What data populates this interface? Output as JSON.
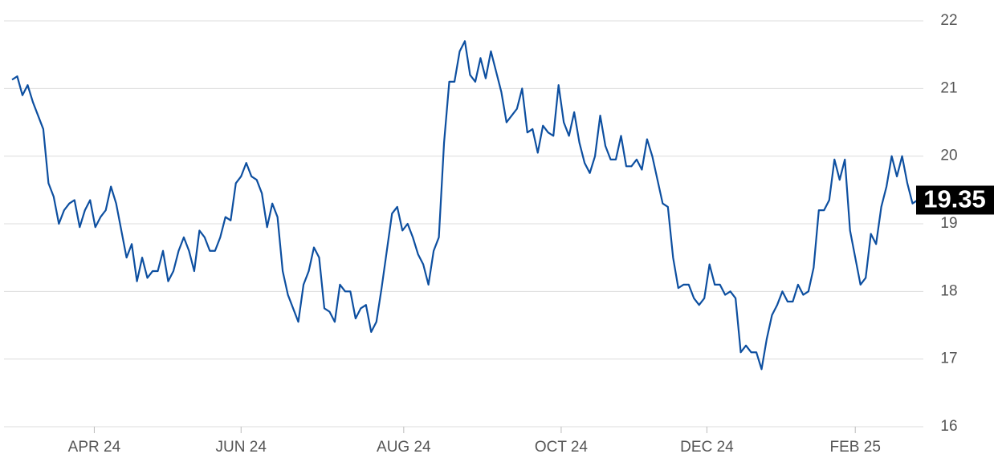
{
  "chart_data": {
    "type": "line",
    "color": "#0d4fa0",
    "grid": true,
    "values": [
      21.13,
      21.18,
      20.9,
      21.05,
      20.8,
      20.6,
      20.4,
      19.6,
      19.4,
      19.0,
      19.2,
      19.3,
      19.35,
      18.95,
      19.2,
      19.35,
      18.95,
      19.1,
      19.2,
      19.55,
      19.3,
      18.9,
      18.5,
      18.7,
      18.15,
      18.5,
      18.2,
      18.3,
      18.3,
      18.6,
      18.15,
      18.3,
      18.6,
      18.8,
      18.6,
      18.3,
      18.9,
      18.8,
      18.6,
      18.6,
      18.8,
      19.1,
      19.05,
      19.6,
      19.7,
      19.9,
      19.7,
      19.65,
      19.45,
      18.95,
      19.3,
      19.1,
      18.3,
      17.95,
      17.75,
      17.55,
      18.1,
      18.3,
      18.65,
      18.5,
      17.75,
      17.7,
      17.55,
      18.1,
      18.0,
      18.0,
      17.6,
      17.75,
      17.8,
      17.4,
      17.55,
      18.05,
      18.6,
      19.15,
      19.25,
      18.9,
      19.0,
      18.8,
      18.55,
      18.4,
      18.1,
      18.6,
      18.8,
      20.2,
      21.1,
      21.1,
      21.55,
      21.7,
      21.2,
      21.1,
      21.45,
      21.15,
      21.55,
      21.25,
      20.95,
      20.5,
      20.6,
      20.7,
      21.0,
      20.35,
      20.4,
      20.05,
      20.45,
      20.35,
      20.3,
      21.05,
      20.5,
      20.3,
      20.65,
      20.2,
      19.9,
      19.75,
      20.0,
      20.6,
      20.15,
      19.95,
      19.95,
      20.3,
      19.85,
      19.85,
      19.95,
      19.8,
      20.25,
      20.0,
      19.65,
      19.3,
      19.25,
      18.5,
      18.05,
      18.1,
      18.1,
      17.9,
      17.8,
      17.9,
      18.4,
      18.1,
      18.1,
      17.95,
      18.0,
      17.9,
      17.1,
      17.2,
      17.1,
      17.1,
      16.85,
      17.3,
      17.65,
      17.8,
      18.0,
      17.85,
      17.85,
      18.1,
      17.95,
      18.0,
      18.35,
      19.2,
      19.2,
      19.35,
      19.95,
      19.65,
      19.95,
      18.9,
      18.5,
      18.1,
      18.2,
      18.85,
      18.7,
      19.25,
      19.55,
      20.0,
      19.7,
      20.0,
      19.6,
      19.3,
      19.35
    ],
    "xlim": [
      0,
      174
    ],
    "xticks": [
      {
        "value": 15.8,
        "label": "APR 24"
      },
      {
        "value": 44,
        "label": "JUN 24"
      },
      {
        "value": 75.25,
        "label": "AUG 24"
      },
      {
        "value": 105.5,
        "label": "OCT 24"
      },
      {
        "value": 133.5,
        "label": "DEC 24"
      },
      {
        "value": 162,
        "label": "FEB 25"
      }
    ],
    "ylim": [
      16,
      22
    ],
    "yticks": [
      16,
      17,
      18,
      19,
      20,
      21,
      22
    ]
  }
}
